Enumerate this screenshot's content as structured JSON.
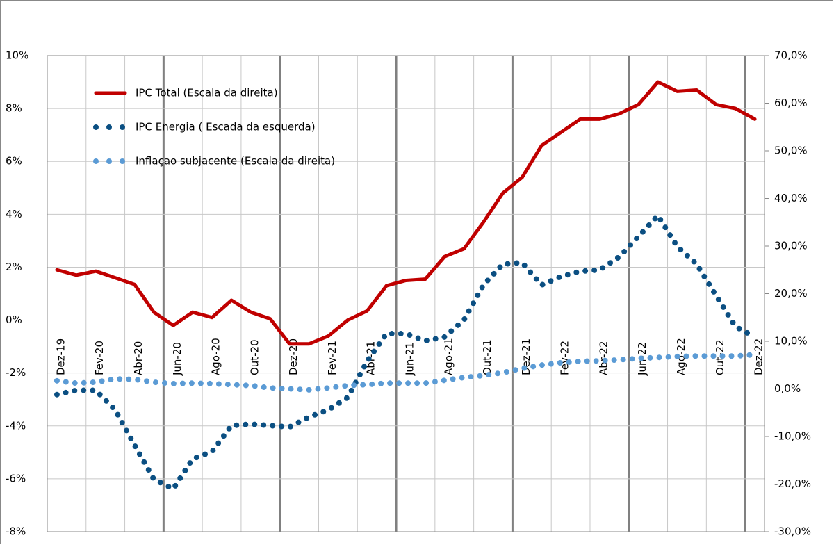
{
  "chart_data": {
    "type": "line",
    "categories": [
      "Dez-19",
      null,
      "Fev-20",
      null,
      "Abr-20",
      null,
      "Jun-20",
      null,
      "Ago-20",
      null,
      "Out-20",
      null,
      "Dez-20",
      null,
      "Fev-21",
      null,
      "Abr-21",
      null,
      "Jun-21",
      null,
      "Ago-21",
      null,
      "Out-21",
      null,
      "Dez-21",
      null,
      "Fev-22",
      null,
      "Abr-22",
      null,
      "Jun-22",
      null,
      "Ago-22",
      null,
      "Out-22",
      null,
      "Dez-22"
    ],
    "series": [
      {
        "name": "IPC Total (Escala da  direita)",
        "color": "#c00000",
        "style": "solid",
        "values": [
          1.9,
          1.7,
          1.85,
          1.6,
          1.35,
          0.3,
          -0.2,
          0.3,
          0.1,
          0.75,
          0.3,
          0.05,
          -0.9,
          -0.9,
          -0.6,
          0.0,
          0.35,
          1.3,
          1.5,
          1.55,
          2.4,
          2.7,
          3.7,
          4.8,
          5.4,
          6.6,
          7.1,
          7.6,
          7.6,
          7.8,
          8.15,
          9.0,
          8.65,
          8.7,
          8.15,
          8.0,
          7.6
        ]
      },
      {
        "name": "IPC Energia ( Escada da esquerda)",
        "color": "#0b4f82",
        "style": "dotted",
        "axis": "y2",
        "values": [
          -1.2,
          -0.3,
          -0.3,
          -4.4,
          -11.8,
          -19,
          -21,
          -14.7,
          -13.2,
          -7.7,
          -7.4,
          -7.7,
          -8,
          -5.9,
          -4.4,
          -1.8,
          5.8,
          11.6,
          11.6,
          10.1,
          10.9,
          14.5,
          21.8,
          26.2,
          26.5,
          21.8,
          23.6,
          24.7,
          25,
          27.7,
          32,
          36.4,
          29.9,
          26.2,
          19.6,
          13.1,
          10.9
        ]
      },
      {
        "name": "Inflaçao subjacente (Escala da direita)",
        "color": "#5b9bd5",
        "style": "dotted",
        "axis": "y2",
        "values": [
          1.7,
          1.2,
          1.4,
          2.1,
          2.0,
          1.4,
          1.1,
          1.2,
          1.1,
          0.9,
          0.7,
          0.2,
          0.0,
          -0.2,
          0.2,
          0.7,
          0.9,
          1.2,
          1.2,
          1.2,
          1.8,
          2.4,
          2.8,
          3.4,
          4.3,
          5.0,
          5.5,
          5.8,
          5.9,
          6.1,
          6.4,
          6.6,
          6.8,
          6.9,
          6.9,
          6.9,
          7.2
        ]
      }
    ],
    "ylim": [
      -8,
      10
    ],
    "yticks": [
      {
        "value": -8,
        "label": "-8%"
      },
      {
        "value": -6,
        "label": "-6%"
      },
      {
        "value": -4,
        "label": "-4%"
      },
      {
        "value": -2,
        "label": "-2%"
      },
      {
        "value": 0,
        "label": "0%"
      },
      {
        "value": 2,
        "label": "2%"
      },
      {
        "value": 4,
        "label": "4%"
      },
      {
        "value": 6,
        "label": "6%"
      },
      {
        "value": 8,
        "label": "8%"
      },
      {
        "value": 10,
        "label": "10%"
      }
    ],
    "y2lim": [
      -30,
      70
    ],
    "y2ticks": [
      {
        "value": -30,
        "label": "-30,0%"
      },
      {
        "value": -20,
        "label": "-20,0%"
      },
      {
        "value": -10,
        "label": "-10,0%"
      },
      {
        "value": 0,
        "label": "0,0%"
      },
      {
        "value": 10,
        "label": "10,0%"
      },
      {
        "value": 20,
        "label": "20,0%"
      },
      {
        "value": 30,
        "label": "30,0%"
      },
      {
        "value": 40,
        "label": "40,0%"
      },
      {
        "value": 50,
        "label": "50,0%"
      },
      {
        "value": 60,
        "label": "60,0%"
      },
      {
        "value": 70,
        "label": "70,0%"
      }
    ],
    "grid": true,
    "legend": "top-left"
  }
}
